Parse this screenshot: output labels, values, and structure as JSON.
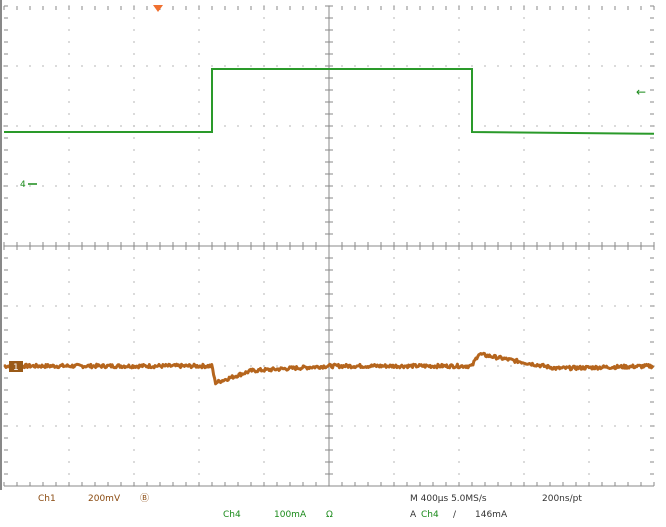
{
  "chart_data": {
    "type": "line",
    "title": "",
    "xlabel": "",
    "ylabel": "",
    "grid": true,
    "x_divisions": 10,
    "y_divisions": 8,
    "series": [
      {
        "name": "Ch4",
        "color": "#2a9a2a",
        "x_div": [
          0.0,
          3.2,
          3.2,
          7.2,
          7.2,
          10.0
        ],
        "y_div": [
          5.9,
          5.9,
          6.95,
          6.95,
          5.9,
          5.87
        ]
      },
      {
        "name": "Ch1",
        "color": "#b5651d",
        "x_div": [
          0.0,
          3.2,
          3.25,
          3.8,
          5.0,
          7.2,
          7.3,
          8.5,
          10.0
        ],
        "y_div": [
          2.0,
          2.0,
          1.72,
          1.92,
          2.0,
          2.0,
          2.2,
          1.96,
          2.0
        ]
      }
    ],
    "markers": {
      "ch4_ground": "4",
      "ch1_ground": "1",
      "trigger_level": "←"
    }
  },
  "status": {
    "ch1_label": "Ch1",
    "ch1_scale": "200mV",
    "ch1_bw": "Ⓑ",
    "ch4_label": "Ch4",
    "ch4_scale": "100mA",
    "ch4_unit": "Ω",
    "timebase": "M 400µs 5.0MS/s",
    "record": "200ns/pt",
    "trigger_prefix": "A",
    "trigger_source": "Ch4",
    "trigger_slope": "∕",
    "trigger_value": "146mA"
  }
}
